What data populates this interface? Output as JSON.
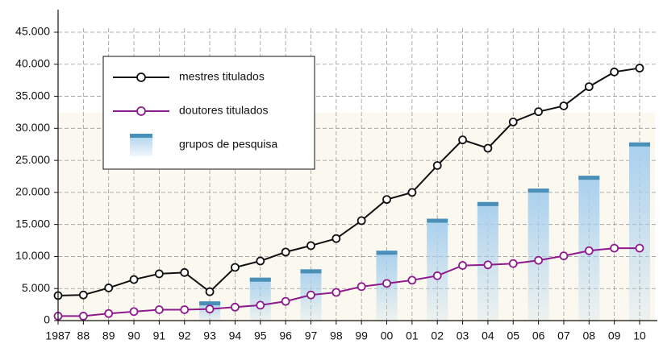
{
  "chart_data": {
    "type": "line",
    "categories": [
      "1987",
      "88",
      "89",
      "90",
      "91",
      "92",
      "93",
      "94",
      "95",
      "96",
      "97",
      "98",
      "99",
      "00",
      "01",
      "02",
      "03",
      "04",
      "05",
      "06",
      "07",
      "08",
      "09",
      "10"
    ],
    "series": [
      {
        "name": "mestres titulados",
        "type": "line",
        "color": "#111111",
        "values": [
          3900,
          4000,
          5100,
          6400,
          7300,
          7500,
          4500,
          8300,
          9300,
          10700,
          11700,
          12800,
          15600,
          18900,
          20000,
          24200,
          28200,
          26900,
          31000,
          32600,
          33500,
          36500,
          38800,
          39400
        ]
      },
      {
        "name": "doutores titulados",
        "type": "line",
        "color": "#8e1a8c",
        "values": [
          700,
          700,
          1100,
          1400,
          1700,
          1700,
          1800,
          2100,
          2400,
          3000,
          4000,
          4400,
          5300,
          5800,
          6300,
          7000,
          8600,
          8700,
          8900,
          9400,
          10100,
          10900,
          11300,
          11300
        ]
      },
      {
        "name": "grupos de pesquisa",
        "type": "bar",
        "color": "#4a8fb8",
        "values": [
          null,
          null,
          null,
          null,
          null,
          null,
          3000,
          null,
          6700,
          null,
          8000,
          null,
          null,
          10900,
          null,
          15900,
          null,
          18500,
          null,
          20600,
          null,
          22600,
          null,
          27800
        ]
      }
    ],
    "ylim": [
      0,
      45000
    ],
    "yticks": [
      0,
      {
        "value": 5000,
        "label": "5.000"
      },
      {
        "value": 10000,
        "label": "10.000"
      },
      {
        "value": 15000,
        "label": "15.000"
      },
      {
        "value": 20000,
        "label": "20.000"
      },
      {
        "value": 25000,
        "label": "25.000"
      },
      {
        "value": 30000,
        "label": "30.000"
      },
      {
        "value": 35000,
        "label": "35.000"
      },
      {
        "value": 40000,
        "label": "40.000"
      },
      {
        "value": 45000,
        "label": "45.000"
      }
    ],
    "grid": true
  }
}
